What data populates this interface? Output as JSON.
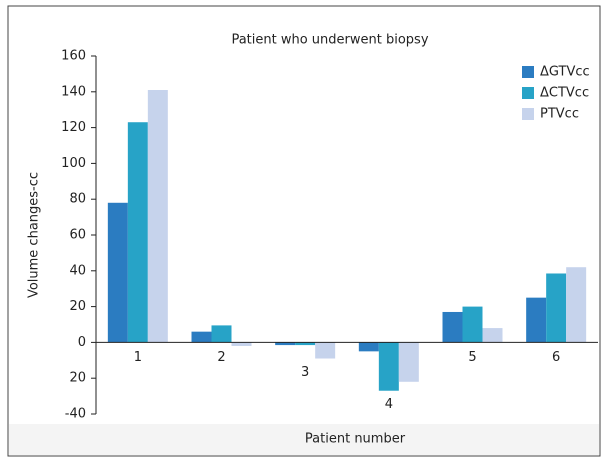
{
  "chart_data": {
    "type": "bar",
    "title": "Patient who underwent biopsy",
    "x_label": "Patient number",
    "y_label": "Volume changes-cc",
    "categories": [
      "1",
      "2",
      "3",
      "4",
      "5",
      "6"
    ],
    "series": [
      {
        "name": "ΔGTVcc",
        "color": "#2b7cc1",
        "values": [
          78,
          6,
          -1.5,
          -5,
          17,
          25
        ]
      },
      {
        "name": "ΔCTVcc",
        "color": "#27a3c7",
        "values": [
          123,
          9.5,
          -1.5,
          -27,
          20,
          38.5
        ]
      },
      {
        "name": "PTVcc",
        "color": "#c6d3ec",
        "values": [
          141,
          -2,
          -9,
          -22,
          8,
          42
        ]
      }
    ],
    "ylim": [
      -40,
      160
    ],
    "yticks": [
      -40,
      {
        "value": -20,
        "label": "20"
      },
      0,
      20,
      40,
      60,
      80,
      100,
      120,
      140,
      160
    ],
    "legend": "top-right"
  }
}
